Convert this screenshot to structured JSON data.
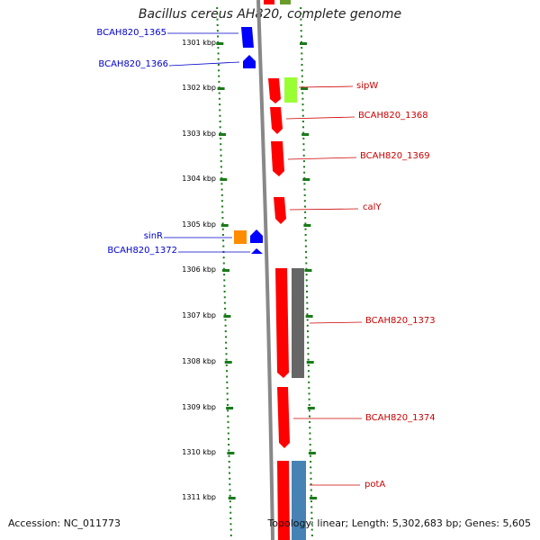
{
  "title": "Bacillus cereus AH820, complete genome",
  "footer": {
    "accession": "Accession: NC_011773",
    "summary": "Topology: linear; Length: 5,302,683 bp; Genes: 5,605"
  },
  "ruler": [
    "1301 kbp",
    "1302 kbp",
    "1303 kbp",
    "1304 kbp",
    "1305 kbp",
    "1306 kbp",
    "1307 kbp",
    "1308 kbp",
    "1309 kbp",
    "1310 kbp",
    "1311 kbp"
  ],
  "genes_left": [
    "BCAH820_1365",
    "BCAH820_1366",
    "sinR",
    "BCAH820_1372"
  ],
  "genes_right": [
    "sipW",
    "BCAH820_1368",
    "BCAH820_1369",
    "calY",
    "BCAH820_1373",
    "BCAH820_1374",
    "potA"
  ],
  "colors": {
    "forward_gene": "#ff0000",
    "reverse_gene": "#0000ff",
    "tick": "#1a7a1a",
    "backbone": "#888888",
    "label_left": "#0000cc",
    "label_right": "#cc0000"
  }
}
